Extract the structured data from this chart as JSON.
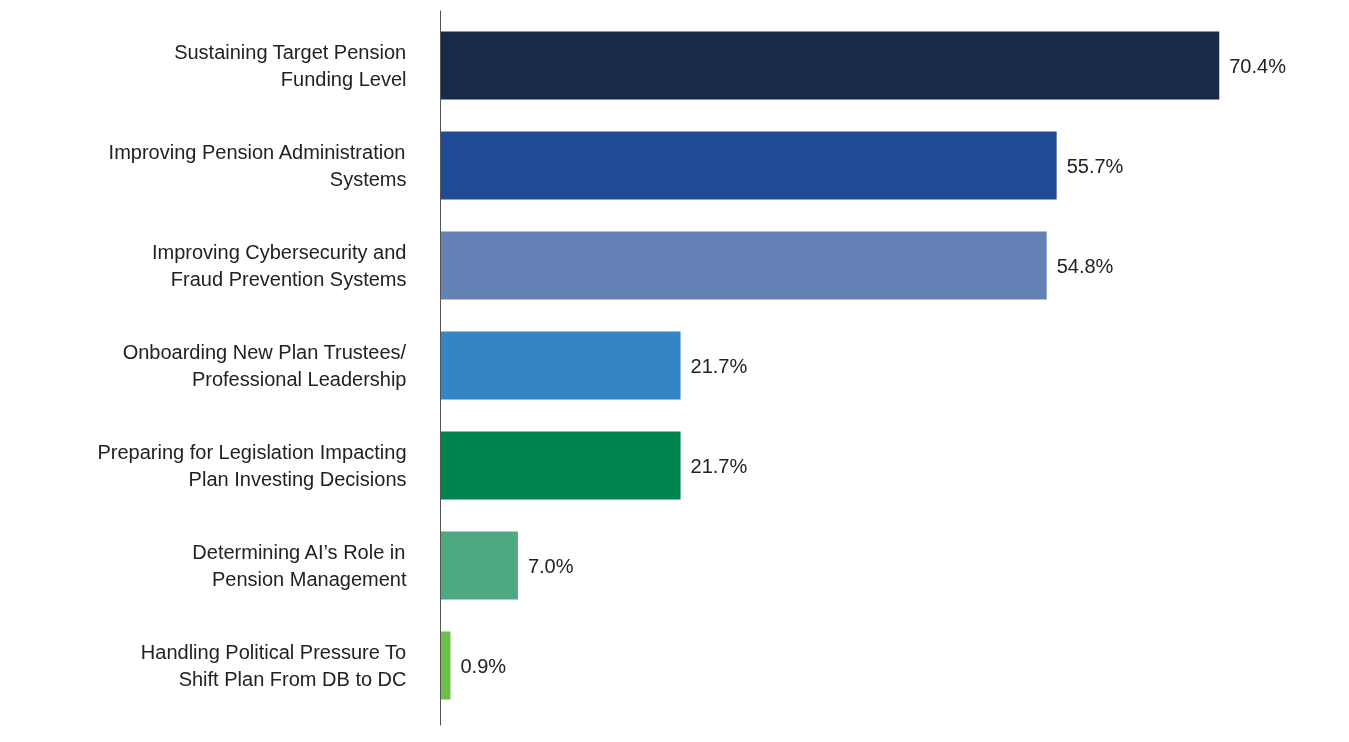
{
  "chart_data": {
    "type": "bar",
    "orientation": "horizontal",
    "categories": [
      "Sustaining Target Pension\nFunding Level",
      "Improving Pension Administration\nSystems",
      "Improving Cybersecurity and\nFraud Prevention Systems",
      "Onboarding New Plan Trustees/\nProfessional Leadership",
      "Preparing for Legislation Impacting\nPlan Investing Decisions",
      "Determining AI’s Role in\nPension Management",
      "Handling Political Pressure To\nShift Plan From DB to DC"
    ],
    "values": [
      70.4,
      55.7,
      54.8,
      21.7,
      21.7,
      7.0,
      0.9
    ],
    "colors": [
      "#172a4a",
      "#204a94",
      "#6381b5",
      "#3385c6",
      "#00844f",
      "#4ea882",
      "#6cc04a"
    ],
    "value_labels": [
      "70.4%",
      "55.7%",
      "54.8%",
      "21.7%",
      "21.7%",
      "7.0%",
      "0.9%"
    ],
    "grid": false
  }
}
